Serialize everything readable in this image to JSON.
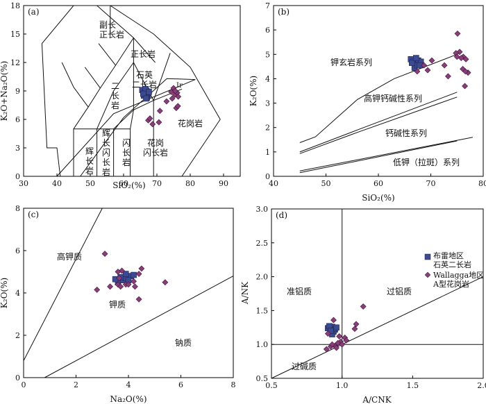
{
  "chart_data": [
    {
      "panel": "(a)",
      "type": "scatter",
      "xlabel": "SiO₂(%)",
      "ylabel": "K₂O+Na₂O(%)",
      "xlim": [
        30,
        95
      ],
      "ylim": [
        0,
        18
      ],
      "xticks": [
        "30",
        "40",
        "50",
        "60",
        "70",
        "80",
        "90"
      ],
      "yticks": [
        "0",
        "3",
        "6",
        "9",
        "12",
        "15",
        "18"
      ],
      "field_labels": [
        "副长",
        "正长岩",
        "正长岩",
        "石英",
        "二长岩",
        "二",
        "长",
        "岩",
        "辉",
        "长",
        "闪",
        "长",
        "岩",
        "辉",
        "长",
        "岩",
        "闪",
        "长",
        "岩",
        "花岗",
        "闪长岩",
        "花岗岩",
        "Ir"
      ],
      "series": [
        {
          "marker": "square",
          "color": "#3b4a93",
          "x": [
            65.6,
            66.4,
            66.9,
            67.3,
            66.1,
            67.0,
            66.6,
            67.6,
            65.9,
            66.8
          ],
          "y": [
            9.1,
            8.8,
            9.0,
            8.6,
            8.5,
            8.3,
            9.2,
            8.9,
            8.7,
            8.2
          ]
        },
        {
          "marker": "diamond",
          "color": "#8a3d7a",
          "x": [
            74.3,
            75.4,
            76.1,
            75.0,
            74.6,
            76.4,
            75.5,
            67.4,
            68.7,
            70.6,
            72.9,
            75.8,
            76.3,
            70.9,
            67.9
          ],
          "y": [
            8.9,
            8.6,
            8.8,
            9.3,
            8.2,
            8.4,
            9.0,
            5.9,
            5.5,
            5.7,
            7.9,
            7.2,
            7.4,
            6.9,
            6.1
          ]
        }
      ]
    },
    {
      "panel": "(b)",
      "type": "scatter",
      "xlabel": "SiO₂(%)",
      "ylabel": "K₂O(%)",
      "xlim": [
        40,
        80
      ],
      "ylim": [
        0,
        7
      ],
      "xticks": [
        "40",
        "50",
        "60",
        "70",
        "80"
      ],
      "yticks": [
        "0",
        "1",
        "2",
        "3",
        "4",
        "5",
        "6",
        "7"
      ],
      "field_labels": [
        "钾玄岩系列",
        "高钾钙碱性系列",
        "钙碱性系列",
        "低钾（拉斑）系列"
      ],
      "series": [
        {
          "marker": "square",
          "color": "#3b4a93",
          "x": [
            66.2,
            66.7,
            67.1,
            67.6,
            68.1,
            66.9,
            67.4,
            66.4,
            67.9,
            67.2
          ],
          "y": [
            4.8,
            4.7,
            4.6,
            4.75,
            4.7,
            4.45,
            4.55,
            4.65,
            4.55,
            4.85
          ]
        },
        {
          "marker": "diamond",
          "color": "#8a3d7a",
          "x": [
            75.1,
            75.5,
            76.2,
            75.8,
            76.7,
            74.8,
            76.1,
            77.1,
            72.6,
            73.3,
            76.5,
            70.2,
            68.7,
            69.4,
            67.4,
            75.0,
            76.6
          ],
          "y": [
            5.85,
            5.1,
            4.9,
            4.85,
            4.8,
            5.05,
            4.4,
            4.25,
            4.55,
            4.1,
            3.7,
            4.75,
            4.55,
            4.35,
            4.3,
            4.9,
            4.3
          ]
        }
      ]
    },
    {
      "panel": "(c)",
      "type": "scatter",
      "xlabel": "Na₂O(%)",
      "ylabel": "K₂O(%)",
      "xlim": [
        0,
        8
      ],
      "ylim": [
        0,
        8
      ],
      "xticks": [
        "0",
        "2",
        "4",
        "6",
        "8"
      ],
      "yticks": [
        "0",
        "2",
        "4",
        "6",
        "8"
      ],
      "field_labels": [
        "高钾质",
        "钾质",
        "钠质"
      ],
      "series": [
        {
          "marker": "square",
          "color": "#3b4a93",
          "x": [
            3.6,
            3.8,
            3.9,
            4.1,
            4.2,
            3.7,
            3.9,
            3.5,
            4.0
          ],
          "y": [
            4.5,
            4.6,
            4.7,
            4.8,
            4.85,
            4.75,
            4.9,
            4.65,
            4.6
          ]
        },
        {
          "marker": "diamond",
          "color": "#8a3d7a",
          "x": [
            3.1,
            2.8,
            3.3,
            3.6,
            3.7,
            4.2,
            4.4,
            4.5,
            3.75,
            3.6,
            4.4,
            5.4,
            4.25,
            3.9,
            3.65,
            4.0
          ],
          "y": [
            5.85,
            4.15,
            4.3,
            4.4,
            4.3,
            4.55,
            4.9,
            5.15,
            5.05,
            5.0,
            3.7,
            4.5,
            4.3,
            4.4,
            4.7,
            4.4
          ]
        }
      ]
    },
    {
      "panel": "(d)",
      "type": "scatter",
      "xlabel": "A/CNK",
      "ylabel": "A/NK",
      "xlim": [
        0.5,
        2.0
      ],
      "ylim": [
        0.5,
        3.0
      ],
      "xticks": [
        "0.5",
        "1.0",
        "1.5",
        "2.0"
      ],
      "yticks": [
        "0.5",
        "1.0",
        "1.5",
        "2.0",
        "2.5",
        "3.0"
      ],
      "field_labels": [
        "准铝质",
        "过铝质",
        "过碱质"
      ],
      "legend": {
        "position": "top-right",
        "entries": [
          {
            "marker": "square",
            "color": "#3b4a93",
            "label": "布雷地区\n石英二长岩"
          },
          {
            "marker": "diamond",
            "color": "#8a3d7a",
            "label": "Wallagga地区\nA型花岗岩"
          }
        ]
      },
      "series": [
        {
          "marker": "square",
          "color": "#3b4a93",
          "x": [
            0.9,
            0.92,
            0.93,
            0.95,
            0.94,
            0.91,
            0.93,
            0.96,
            0.92
          ],
          "y": [
            1.24,
            1.21,
            1.26,
            1.22,
            1.19,
            1.27,
            1.15,
            1.25,
            1.2
          ]
        },
        {
          "marker": "diamond",
          "color": "#8a3d7a",
          "x": [
            1.15,
            1.1,
            1.09,
            1.02,
            0.99,
            0.97,
            0.95,
            1.0,
            0.96,
            0.92,
            0.94,
            0.9,
            1.03,
            0.98,
            0.93,
            0.89
          ],
          "y": [
            1.56,
            1.3,
            1.23,
            1.1,
            1.04,
            1.02,
            0.98,
            1.0,
            0.95,
            0.97,
            1.36,
            1.16,
            1.06,
            1.12,
            1.0,
            0.93
          ]
        }
      ]
    }
  ]
}
